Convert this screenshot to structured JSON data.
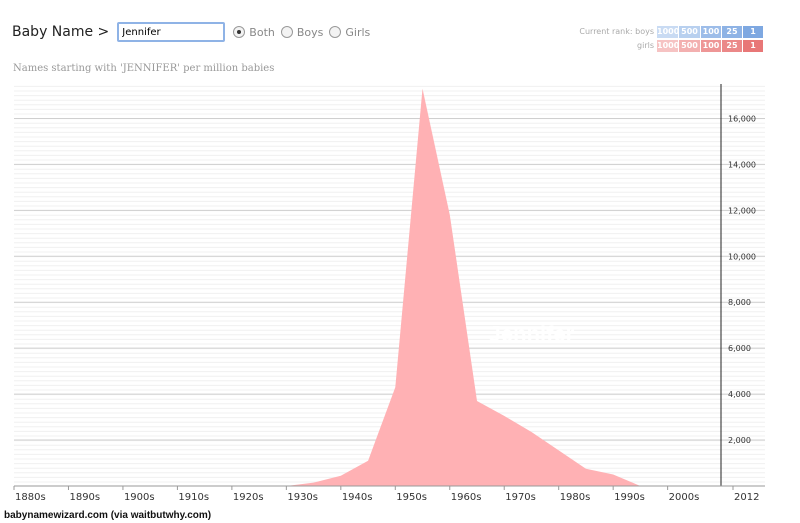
{
  "header": {
    "app_title": "Baby Name >",
    "input_value": "Jennifer",
    "radio_options": [
      {
        "label": "Both",
        "selected": true
      },
      {
        "label": "Boys",
        "selected": false
      },
      {
        "label": "Girls",
        "selected": false
      }
    ]
  },
  "rank_panel": {
    "current_rank_label": "Current rank:",
    "rows": [
      {
        "label": "boys",
        "cells": [
          {
            "text": "1000",
            "color": "#c9dbf3"
          },
          {
            "text": "500",
            "color": "#b8d0ef"
          },
          {
            "text": "100",
            "color": "#9dbde9"
          },
          {
            "text": "25",
            "color": "#8eb3e5"
          },
          {
            "text": "1",
            "color": "#7ea8e1"
          }
        ]
      },
      {
        "label": "girls",
        "cells": [
          {
            "text": "1000",
            "color": "#f6c3c3"
          },
          {
            "text": "500",
            "color": "#f3b0b0"
          },
          {
            "text": "100",
            "color": "#ee9696"
          },
          {
            "text": "25",
            "color": "#eb8888"
          },
          {
            "text": "1",
            "color": "#e87777"
          }
        ]
      }
    ]
  },
  "subtitle": "Names starting with 'JENNIFER' per million babies",
  "credit": "babynamewizard.com (via waitbutwhy.com)",
  "chart_data": {
    "type": "area",
    "title": "",
    "xlabel": "",
    "ylabel": "",
    "x_tick_labels": [
      "1880s",
      "1890s",
      "1900s",
      "1910s",
      "1920s",
      "1930s",
      "1940s",
      "1950s",
      "1960s",
      "1970s",
      "1980s",
      "1990s",
      "2000s",
      "2012"
    ],
    "y_tick_values": [
      2000,
      4000,
      6000,
      8000,
      10000,
      12000,
      14000,
      16000
    ],
    "y_tick_labels": [
      "2,000",
      "4,000",
      "6,000",
      "8,000",
      "10,000",
      "12,000",
      "14,000",
      "16,000"
    ],
    "ylim": [
      0,
      17500
    ],
    "series": [
      {
        "name": "Jennifer",
        "color": "#ffb1b4",
        "x": [
          1925,
          1930,
          1935,
          1940,
          1945,
          1950,
          1955,
          1960,
          1965,
          1970,
          1975,
          1980,
          1985,
          1990,
          1995,
          2000,
          2005,
          2010,
          2012
        ],
        "values": [
          0,
          0,
          150,
          450,
          1100,
          4300,
          17300,
          11800,
          3700,
          3050,
          2350,
          1550,
          750,
          500,
          0,
          0,
          0,
          0,
          0
        ]
      }
    ],
    "grid": true
  }
}
